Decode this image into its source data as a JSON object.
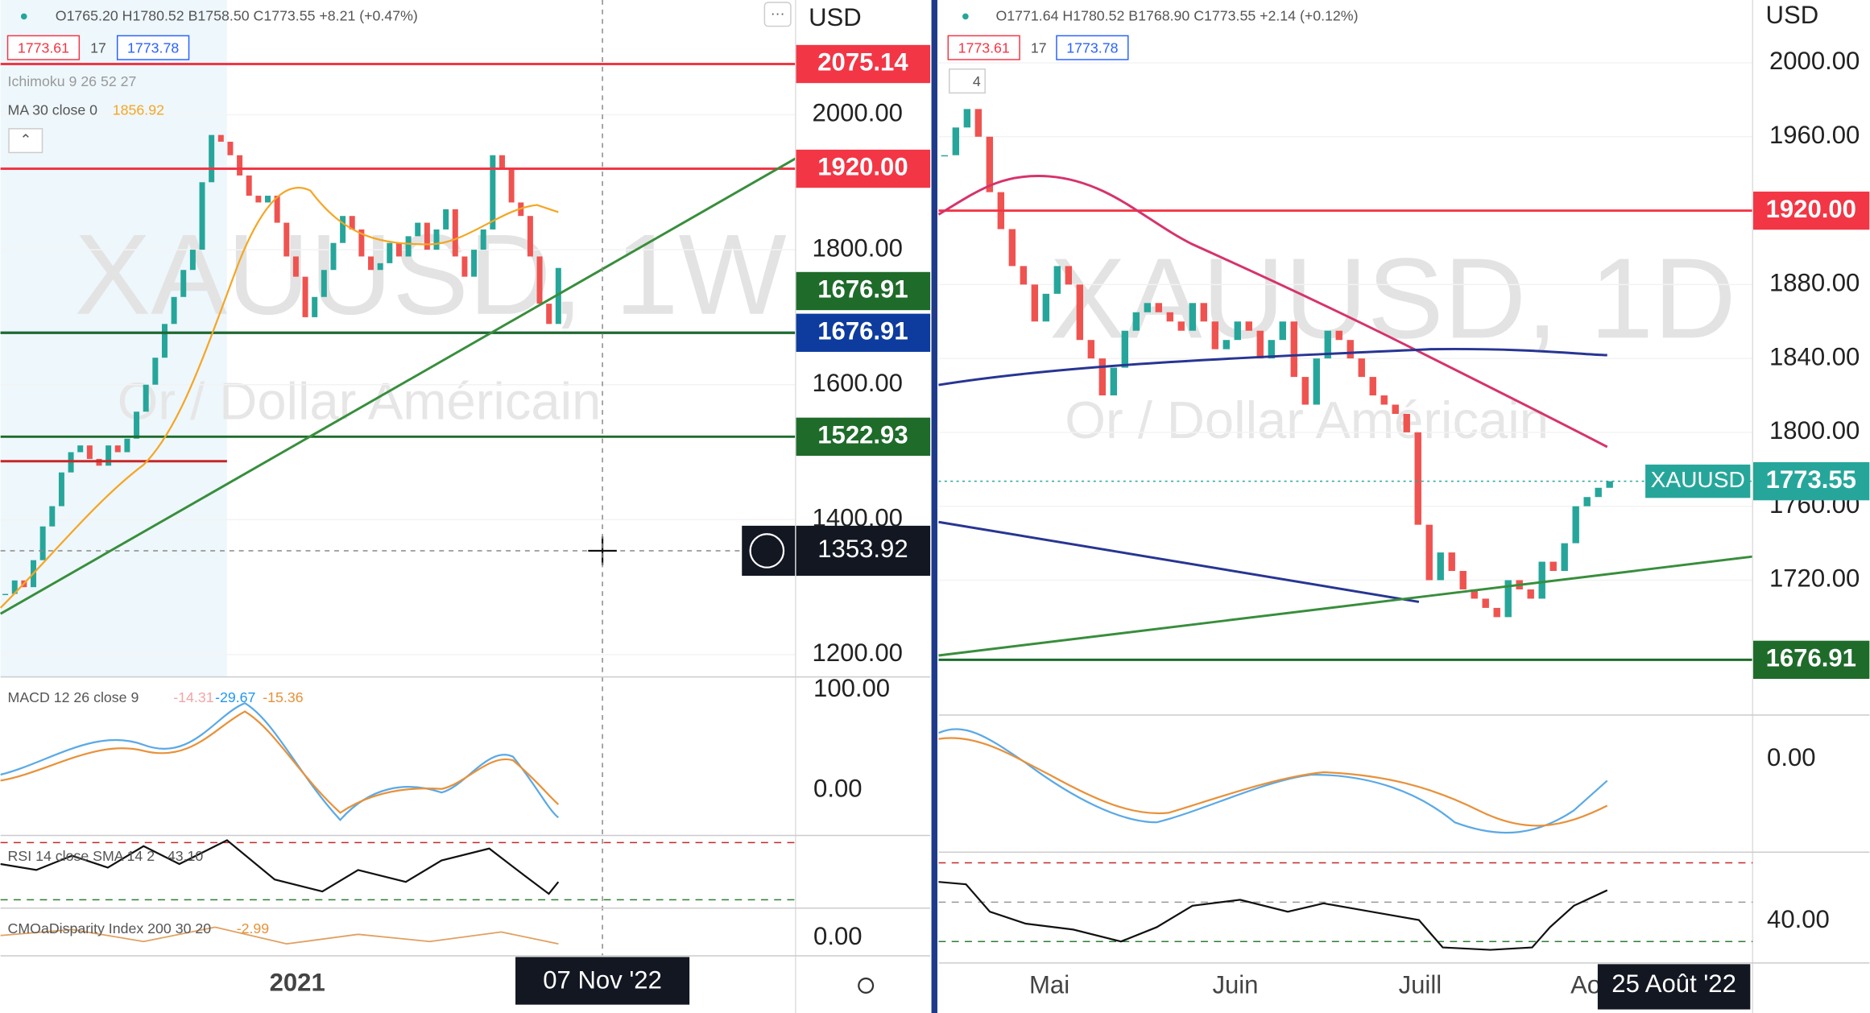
{
  "left": {
    "ohlc": "O1765.20 H1780.52 B1758.50 C1773.55 +8.21 (+0.47%)",
    "boxes": [
      "1773.61",
      "17",
      "1773.78"
    ],
    "ichimoku": "Ichimoku 9 26 52 27",
    "ma_label": "MA 30 close 0",
    "ma_value": "1856.92",
    "currency": "USD",
    "watermark": "XAUUSD, 1W",
    "watermark_sub": "Or / Dollar Américain",
    "chart": {
      "type": "candlestick",
      "values": [
        1290,
        1310,
        1300,
        1340,
        1390,
        1420,
        1470,
        1500,
        1510,
        1490,
        1480,
        1510,
        1500,
        1520,
        1560,
        1600,
        1640,
        1690,
        1730,
        1770,
        1800,
        1900,
        1970,
        1960,
        1940,
        1910,
        1880,
        1870,
        1880,
        1840,
        1790,
        1760,
        1700,
        1730,
        1770,
        1810,
        1850,
        1830,
        1790,
        1770,
        1780,
        1810,
        1790,
        1820,
        1840,
        1800,
        1830,
        1860,
        1790,
        1760,
        1800,
        1830,
        1940,
        1920,
        1870,
        1850,
        1790,
        1720,
        1690,
        1773
      ],
      "ylim": [
        1167,
        2170
      ],
      "yticks": [
        {
          "value": 2000,
          "label": "2000.00"
        },
        {
          "value": 1800,
          "label": "1800.00"
        },
        {
          "value": 1600,
          "label": "1600.00"
        },
        {
          "value": 1400,
          "label": "1400.00"
        },
        {
          "value": 1200,
          "label": "1200.00"
        }
      ],
      "levels": [
        {
          "value": 2075.14,
          "label": "2075.14",
          "color": "#f23645"
        },
        {
          "value": 1920,
          "label": "1920.00",
          "color": "#f23645"
        },
        {
          "value": 1676.91,
          "label": "1676.91",
          "color": "#0d3c9e"
        },
        {
          "value": 1676.91,
          "label": "1676.91",
          "color": "#1e6b2a"
        },
        {
          "value": 1522.93,
          "label": "1522.93",
          "color": "#1e6b2a"
        }
      ],
      "crosshair": {
        "value": 1353.92,
        "label": "1353.92"
      }
    },
    "macd": {
      "label": "MACD 12 26 close 9",
      "values": [
        "-14.31",
        "-29.67",
        "-15.36"
      ],
      "ticks": [
        "100.00",
        "0.00"
      ]
    },
    "rsi": {
      "label": "RSI 14 close SMA 14 2",
      "value": "43.10"
    },
    "cmo": {
      "label": "CMOaDisparity Index 200 30 20",
      "value": "-2.99",
      "tick": "0.00"
    },
    "time": {
      "labels": [
        "2021"
      ],
      "cursor": "07 Nov '22"
    }
  },
  "right": {
    "ohlc": "O1771.64 H1780.52 B1768.90 C1773.55 +2.14 (+0.12%)",
    "boxes": [
      "1773.61",
      "17",
      "1773.78"
    ],
    "collapse": "4",
    "currency": "USD",
    "watermark": "XAUUSD, 1D",
    "watermark_sub": "Or / Dollar Américain",
    "chart": {
      "type": "candlestick",
      "values": [
        1950,
        1965,
        1975,
        1960,
        1930,
        1910,
        1890,
        1880,
        1860,
        1875,
        1890,
        1880,
        1850,
        1840,
        1820,
        1835,
        1855,
        1865,
        1870,
        1865,
        1860,
        1855,
        1870,
        1860,
        1845,
        1850,
        1860,
        1855,
        1840,
        1850,
        1860,
        1830,
        1815,
        1840,
        1855,
        1850,
        1840,
        1830,
        1820,
        1815,
        1810,
        1800,
        1750,
        1720,
        1735,
        1725,
        1715,
        1710,
        1705,
        1700,
        1720,
        1715,
        1710,
        1730,
        1725,
        1740,
        1760,
        1765,
        1770,
        1773.55
      ],
      "ylim": [
        1647,
        2034
      ],
      "yticks": [
        {
          "value": 2000,
          "label": "2000.00"
        },
        {
          "value": 1960,
          "label": "1960.00"
        },
        {
          "value": 1920,
          "label": "1920.00"
        },
        {
          "value": 1880,
          "label": "1880.00"
        },
        {
          "value": 1840,
          "label": "1840.00"
        },
        {
          "value": 1800,
          "label": "1800.00"
        },
        {
          "value": 1760,
          "label": "1760.00"
        },
        {
          "value": 1720,
          "label": "1720.00"
        }
      ],
      "levels": [
        {
          "value": 1920,
          "label": "1920.00",
          "color": "#f23645"
        },
        {
          "value": 1773.55,
          "label": "1773.55",
          "color": "#26a69a",
          "tag": "XAUUSD"
        },
        {
          "value": 1676.91,
          "label": "1676.91",
          "color": "#1e6b2a"
        }
      ]
    },
    "macd": {
      "tick": "0.00"
    },
    "rsi": {
      "tick": "40.00"
    },
    "time": {
      "labels": [
        "Mai",
        "Juin",
        "Juill",
        "Ao"
      ],
      "cursor": "25 Août '22"
    }
  }
}
